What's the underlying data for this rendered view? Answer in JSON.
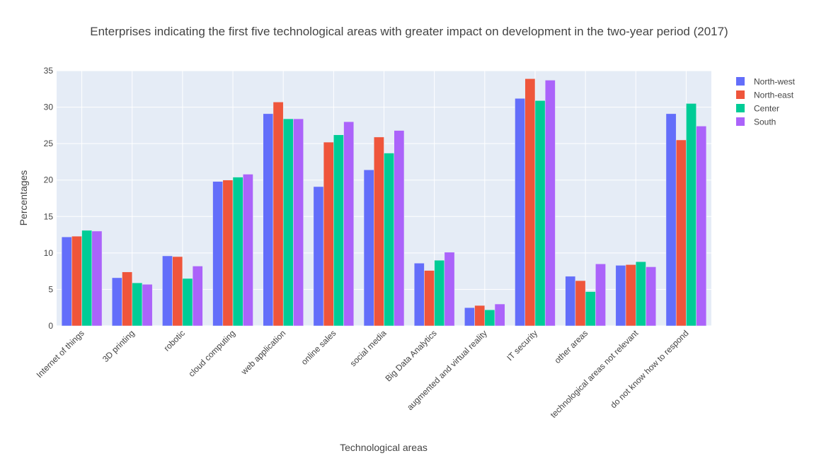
{
  "chart_data": {
    "type": "bar",
    "title": "Enterprises indicating the first five technological areas with greater impact on development in the two-year period (2017)",
    "xlabel": "Technological areas",
    "ylabel": "Percentages",
    "ylim": [
      0,
      35
    ],
    "yticks": [
      0,
      5,
      10,
      15,
      20,
      25,
      30,
      35
    ],
    "grid": true,
    "legend_position": "top-right",
    "categories": [
      "Internet of things",
      "3D printing",
      "robotic",
      "cloud computing",
      "web application",
      "online sales",
      "social media",
      "Big Data Analytics",
      "augmented and virtual reality",
      "IT security",
      "other areas",
      "technological areas not relevant",
      "do not know how to respond"
    ],
    "series": [
      {
        "name": "North-west",
        "color": "#636efa",
        "values": [
          12.2,
          6.6,
          9.6,
          19.8,
          29.1,
          19.1,
          21.4,
          8.6,
          2.5,
          31.2,
          6.8,
          8.3,
          29.1
        ]
      },
      {
        "name": "North-east",
        "color": "#ef553b",
        "values": [
          12.3,
          7.4,
          9.5,
          20.0,
          30.7,
          25.2,
          25.9,
          7.6,
          2.8,
          33.9,
          6.2,
          8.4,
          25.5
        ]
      },
      {
        "name": "Center",
        "color": "#00cc96",
        "values": [
          13.1,
          5.9,
          6.5,
          20.4,
          28.4,
          26.2,
          23.7,
          9.0,
          2.2,
          30.9,
          4.7,
          8.8,
          30.5
        ]
      },
      {
        "name": "South",
        "color": "#ab63fa",
        "values": [
          13.0,
          5.7,
          8.2,
          20.8,
          28.4,
          28.0,
          26.8,
          10.1,
          3.0,
          33.7,
          8.5,
          8.1,
          27.4
        ]
      }
    ]
  }
}
